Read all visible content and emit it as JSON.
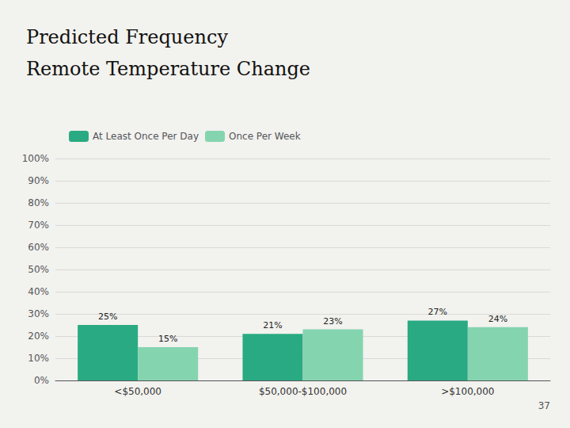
{
  "chart_data": {
    "type": "bar",
    "title": "Predicted Frequency",
    "subtitle": "Remote Temperature Change",
    "categories": [
      "<$50,000",
      "$50,000-$100,000",
      ">$100,000"
    ],
    "series": [
      {
        "name": "At Least Once Per Day",
        "color": "#2aaa82",
        "values": [
          25,
          21,
          27
        ],
        "value_labels": [
          "25%",
          "21%",
          "27%"
        ]
      },
      {
        "name": "Once Per Week",
        "color": "#85d4b0",
        "values": [
          15,
          23,
          24
        ],
        "value_labels": [
          "15%",
          "23%",
          "24%"
        ]
      }
    ],
    "ylim": [
      0,
      100
    ],
    "yticks": [
      {
        "value": 0,
        "label": "0%"
      },
      {
        "value": 10,
        "label": "10%"
      },
      {
        "value": 20,
        "label": "20%"
      },
      {
        "value": 30,
        "label": "30%"
      },
      {
        "value": 40,
        "label": "40%"
      },
      {
        "value": 50,
        "label": "50%"
      },
      {
        "value": 60,
        "label": "60%"
      },
      {
        "value": 70,
        "label": "70%"
      },
      {
        "value": 80,
        "label": "80%"
      },
      {
        "value": 90,
        "label": "90%"
      },
      {
        "value": 100,
        "label": "100%"
      }
    ],
    "grid": true,
    "legend": "top left",
    "data_labels": true,
    "annotations": [
      "37"
    ]
  }
}
